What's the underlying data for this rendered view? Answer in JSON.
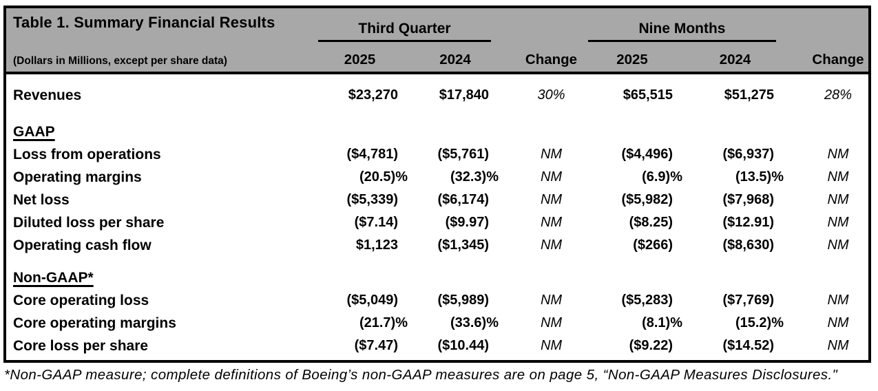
{
  "table": {
    "title": "Table 1. Summary Financial Results",
    "subtitle": "(Dollars in Millions, except per share data)",
    "col_groups": [
      {
        "label": "Third Quarter"
      },
      {
        "label": "Nine Months"
      }
    ],
    "col_headers": [
      "2025",
      "2024",
      "Change",
      "2025",
      "2024",
      "Change"
    ],
    "rows": [
      {
        "label": "Revenues",
        "style": "data",
        "percent": false,
        "values": [
          "$23,270",
          "$17,840",
          "30%",
          "$65,515",
          "$51,275",
          "28%"
        ]
      },
      {
        "label": "GAAP",
        "style": "section",
        "percent": false,
        "values": []
      },
      {
        "label": "Loss from operations",
        "style": "data",
        "percent": false,
        "values": [
          "($4,781)",
          "($5,761)",
          "NM",
          "($4,496)",
          "($6,937)",
          "NM"
        ]
      },
      {
        "label": "Operating margins",
        "style": "data",
        "percent": true,
        "values": [
          "(20.5)%",
          "(32.3)%",
          "NM",
          "(6.9)%",
          "(13.5)%",
          "NM"
        ]
      },
      {
        "label": "Net loss",
        "style": "data",
        "percent": false,
        "values": [
          "($5,339)",
          "($6,174)",
          "NM",
          "($5,982)",
          "($7,968)",
          "NM"
        ]
      },
      {
        "label": "Diluted loss per share",
        "style": "data",
        "percent": false,
        "values": [
          "($7.14)",
          "($9.97)",
          "NM",
          "($8.25)",
          "($12.91)",
          "NM"
        ]
      },
      {
        "label": "Operating cash flow",
        "style": "data",
        "percent": false,
        "values": [
          "$1,123",
          "($1,345)",
          "NM",
          "($266)",
          "($8,630)",
          "NM"
        ]
      },
      {
        "label": "Non-GAAP*",
        "style": "section",
        "percent": false,
        "values": []
      },
      {
        "label": "Core operating loss",
        "style": "data",
        "percent": false,
        "values": [
          "($5,049)",
          "($5,989)",
          "NM",
          "($5,283)",
          "($7,769)",
          "NM"
        ]
      },
      {
        "label": "Core operating margins",
        "style": "data",
        "percent": true,
        "values": [
          "(21.7)%",
          "(33.6)%",
          "NM",
          "(8.1)%",
          "(15.2)%",
          "NM"
        ]
      },
      {
        "label": "Core loss per share",
        "style": "data",
        "percent": false,
        "values": [
          "($7.47)",
          "($10.44)",
          "NM",
          "($9.22)",
          "($14.52)",
          "NM"
        ]
      }
    ],
    "footnote": "*Non-GAAP measure; complete definitions of Boeing’s non-GAAP measures are on page 5, “Non-GAAP Measures Disclosures.\""
  },
  "colors": {
    "header_bg": "#a8a8a8",
    "border": "#000000",
    "text": "#000000"
  }
}
